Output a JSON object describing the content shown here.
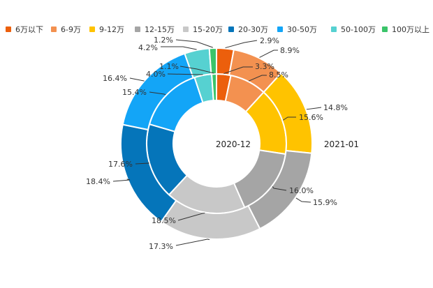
{
  "chart_data": {
    "type": "pie",
    "categories": [
      "6万以下",
      "6-9万",
      "9-12万",
      "12-15万",
      "15-20万",
      "20-30万",
      "30-50万",
      "50-100万",
      "100万以上"
    ],
    "colors": [
      "#EC5F0C",
      "#F39150",
      "#FFC300",
      "#A5A5A5",
      "#C8C8C8",
      "#0575BA",
      "#13A5F7",
      "#56D1D1",
      "#3BC46A"
    ],
    "series": [
      {
        "name": "2020-12",
        "ring": "inner",
        "values": [
          3.3,
          8.5,
          15.6,
          16.0,
          18.5,
          17.6,
          15.4,
          4.0,
          1.1
        ]
      },
      {
        "name": "2021-01",
        "ring": "outer",
        "values": [
          2.9,
          8.9,
          14.8,
          15.9,
          17.3,
          18.4,
          16.4,
          4.2,
          1.2
        ]
      }
    ],
    "value_suffix": "%",
    "legend_position": "top"
  }
}
